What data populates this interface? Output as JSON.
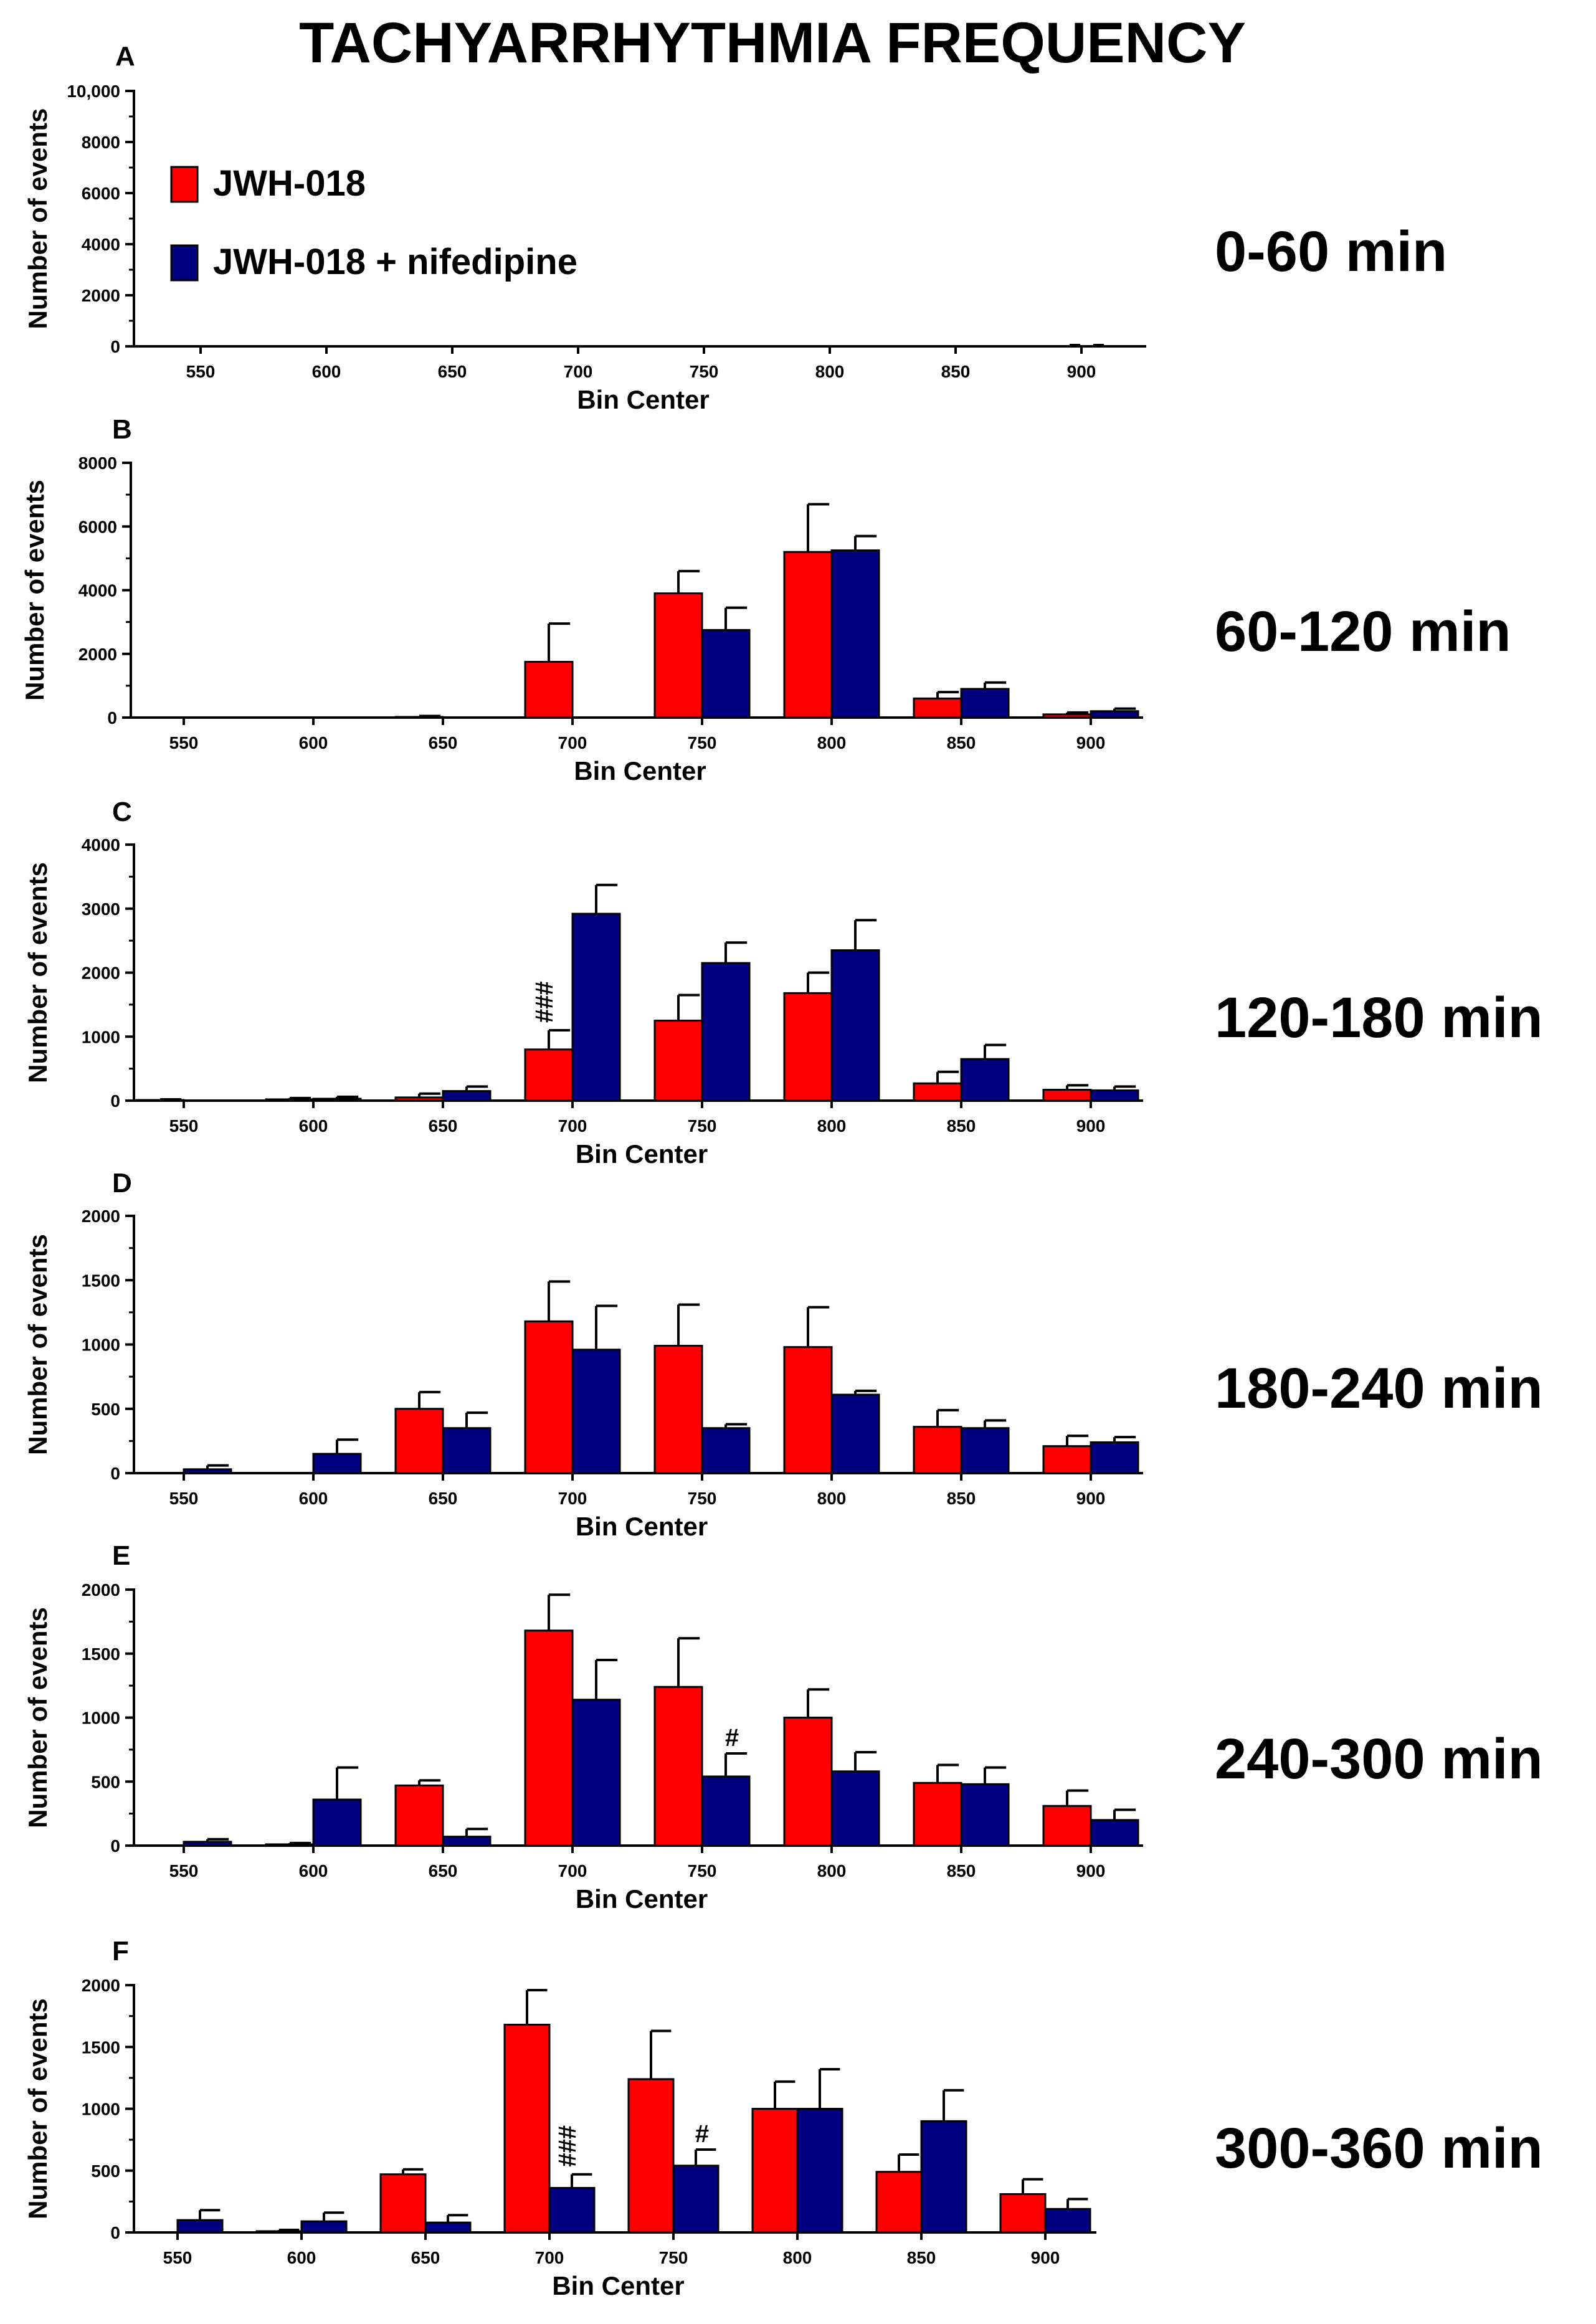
{
  "title": "TACHYARRHYTHMIA FREQUENCY",
  "colors": {
    "series_0": "#ff0000",
    "series_1": "#000080",
    "axis": "#000000"
  },
  "legend": [
    {
      "name": "JWH-018",
      "color": "#ff0000"
    },
    {
      "name": "JWH-018 + nifedipine",
      "color": "#000080"
    }
  ],
  "chart_data": [
    {
      "type": "bar",
      "panel": "A",
      "time_label": "0-60 min",
      "xlabel": "Bin Center",
      "ylabel": "Number of events",
      "categories": [
        "550",
        "600",
        "650",
        "700",
        "750",
        "800",
        "850",
        "900"
      ],
      "ylim": [
        0,
        10000
      ],
      "yticks": [
        0,
        2000,
        4000,
        6000,
        8000,
        10000
      ],
      "ytick_labels": [
        "0",
        "2000",
        "4000",
        "6000",
        "8000",
        "10,000"
      ],
      "series": [
        {
          "name": "JWH-018",
          "values": [
            0,
            0,
            0,
            0,
            0,
            0,
            0,
            10
          ],
          "errors": [
            0,
            0,
            0,
            0,
            0,
            0,
            0,
            40
          ]
        },
        {
          "name": "JWH-018 + nifedipine",
          "values": [
            0,
            0,
            0,
            0,
            0,
            0,
            0,
            10
          ],
          "errors": [
            0,
            0,
            0,
            0,
            0,
            0,
            0,
            40
          ]
        }
      ],
      "annotations": []
    },
    {
      "type": "bar",
      "panel": "B",
      "time_label": "60-120 min",
      "xlabel": "Bin Center",
      "ylabel": "Number of events",
      "categories": [
        "550",
        "600",
        "650",
        "700",
        "750",
        "800",
        "850",
        "900"
      ],
      "ylim": [
        0,
        8000
      ],
      "yticks": [
        0,
        2000,
        4000,
        6000,
        8000
      ],
      "ytick_labels": [
        "0",
        "2000",
        "4000",
        "6000",
        "8000"
      ],
      "series": [
        {
          "name": "JWH-018",
          "values": [
            0,
            0,
            20,
            1750,
            3900,
            5200,
            600,
            100
          ],
          "errors": [
            0,
            0,
            30,
            1200,
            700,
            1500,
            200,
            60
          ]
        },
        {
          "name": "JWH-018 + nifedipine",
          "values": [
            0,
            0,
            0,
            0,
            2750,
            5250,
            900,
            200
          ],
          "errors": [
            0,
            0,
            0,
            0,
            700,
            450,
            200,
            80
          ]
        }
      ],
      "annotations": []
    },
    {
      "type": "bar",
      "panel": "C",
      "time_label": "120-180 min",
      "xlabel": "Bin Center",
      "ylabel": "Number of events",
      "categories": [
        "550",
        "600",
        "650",
        "700",
        "750",
        "800",
        "850",
        "900"
      ],
      "ylim": [
        0,
        4000
      ],
      "yticks": [
        0,
        1000,
        2000,
        3000,
        4000
      ],
      "ytick_labels": [
        "0",
        "1000",
        "2000",
        "3000",
        "4000"
      ],
      "series": [
        {
          "name": "JWH-018",
          "values": [
            10,
            20,
            50,
            800,
            1250,
            1680,
            270,
            170
          ],
          "errors": [
            10,
            20,
            60,
            300,
            400,
            320,
            180,
            70
          ]
        },
        {
          "name": "JWH-018 + nifedipine",
          "values": [
            0,
            30,
            150,
            2920,
            2150,
            2350,
            650,
            160
          ],
          "errors": [
            0,
            30,
            70,
            450,
            320,
            470,
            220,
            60
          ]
        }
      ],
      "annotations": [
        {
          "text": "###",
          "category": "700",
          "series": 0
        }
      ]
    },
    {
      "type": "bar",
      "panel": "D",
      "time_label": "180-240 min",
      "xlabel": "Bin Center",
      "ylabel": "Number of events",
      "categories": [
        "550",
        "600",
        "650",
        "700",
        "750",
        "800",
        "850",
        "900"
      ],
      "ylim": [
        0,
        2000
      ],
      "yticks": [
        0,
        500,
        1000,
        1500,
        2000
      ],
      "ytick_labels": [
        "0",
        "500",
        "1000",
        "1500",
        "2000"
      ],
      "series": [
        {
          "name": "JWH-018",
          "values": [
            0,
            0,
            500,
            1180,
            990,
            980,
            360,
            210
          ],
          "errors": [
            0,
            0,
            130,
            310,
            320,
            310,
            130,
            80
          ]
        },
        {
          "name": "JWH-018 + nifedipine",
          "values": [
            30,
            150,
            350,
            960,
            350,
            610,
            350,
            240
          ],
          "errors": [
            30,
            110,
            120,
            340,
            30,
            30,
            60,
            40
          ]
        }
      ],
      "annotations": []
    },
    {
      "type": "bar",
      "panel": "E",
      "time_label": "240-300 min",
      "xlabel": "Bin Center",
      "ylabel": "Number of events",
      "categories": [
        "550",
        "600",
        "650",
        "700",
        "750",
        "800",
        "850",
        "900"
      ],
      "ylim": [
        0,
        2000
      ],
      "yticks": [
        0,
        500,
        1000,
        1500,
        2000
      ],
      "ytick_labels": [
        "0",
        "500",
        "1000",
        "1500",
        "2000"
      ],
      "series": [
        {
          "name": "JWH-018",
          "values": [
            0,
            10,
            470,
            1680,
            1240,
            1000,
            490,
            310
          ],
          "errors": [
            0,
            10,
            40,
            280,
            380,
            220,
            140,
            120
          ]
        },
        {
          "name": "JWH-018 + nifedipine",
          "values": [
            30,
            360,
            70,
            1140,
            540,
            580,
            480,
            200
          ],
          "errors": [
            20,
            250,
            60,
            310,
            180,
            150,
            130,
            80
          ]
        }
      ],
      "annotations": [
        {
          "text": "#",
          "category": "750",
          "series": 1
        }
      ]
    },
    {
      "type": "bar",
      "panel": "F",
      "time_label": "300-360 min",
      "xlabel": "Bin Center",
      "ylabel": "Number of events",
      "categories": [
        "550",
        "600",
        "650",
        "700",
        "750",
        "800",
        "850",
        "900"
      ],
      "ylim": [
        0,
        2000
      ],
      "yticks": [
        0,
        500,
        1000,
        1500,
        2000
      ],
      "ytick_labels": [
        "0",
        "500",
        "1000",
        "1500",
        "2000"
      ],
      "series": [
        {
          "name": "JWH-018",
          "values": [
            0,
            10,
            470,
            1680,
            1240,
            1000,
            490,
            310
          ],
          "errors": [
            0,
            10,
            40,
            280,
            390,
            220,
            140,
            120
          ]
        },
        {
          "name": "JWH-018 + nifedipine",
          "values": [
            100,
            90,
            80,
            360,
            540,
            1000,
            900,
            190
          ],
          "errors": [
            80,
            70,
            60,
            110,
            130,
            320,
            250,
            80
          ]
        }
      ],
      "annotations": [
        {
          "text": "###",
          "category": "700",
          "series": 1
        },
        {
          "text": "#",
          "category": "750",
          "series": 1
        }
      ]
    }
  ]
}
